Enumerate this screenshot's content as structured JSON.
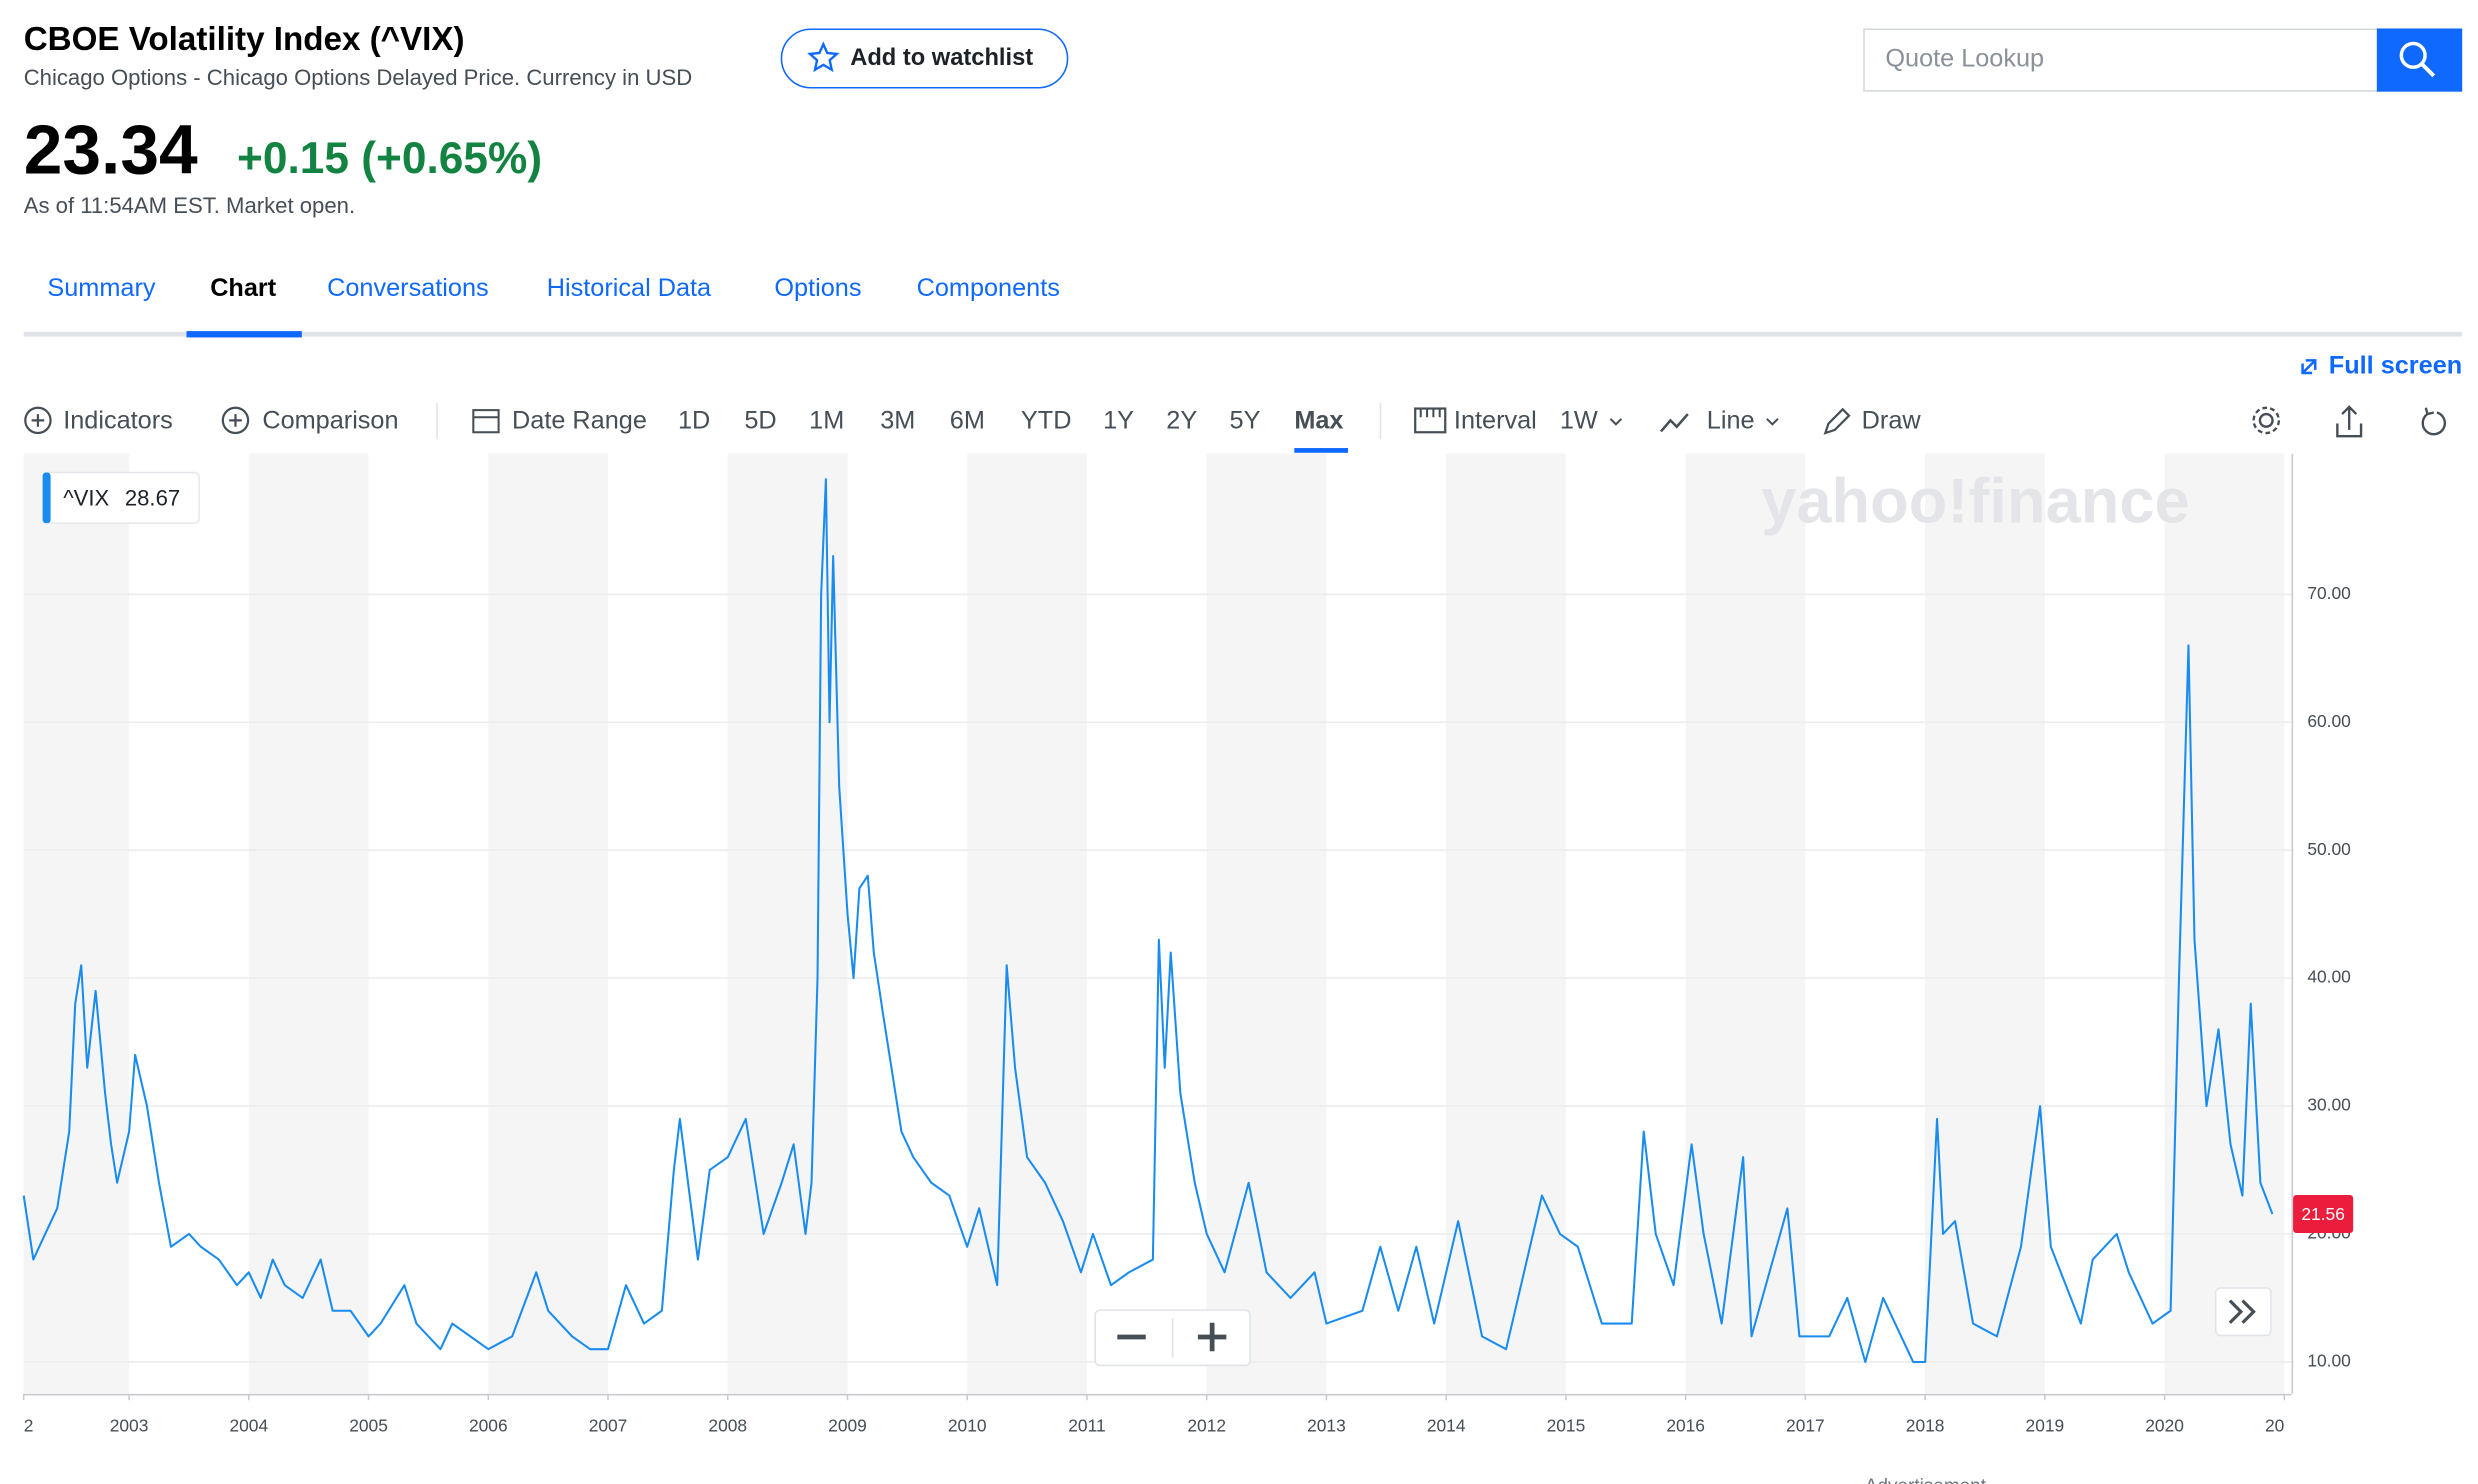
{
  "header": {
    "title": "CBOE Volatility Index (^VIX)",
    "subtitle": "Chicago Options - Chicago Options Delayed Price. Currency in USD",
    "watchlist": "Add to watchlist",
    "search_placeholder": "Quote Lookup",
    "price": "23.34",
    "change": "+0.15 (+0.65%)",
    "as_of": "As of 11:54AM EST. Market open."
  },
  "tabs": [
    "Summary",
    "Chart",
    "Conversations",
    "Historical Data",
    "Options",
    "Components"
  ],
  "toolbar": {
    "full_screen": "Full screen",
    "indicators": "Indicators",
    "comparison": "Comparison",
    "date_range": "Date Range",
    "ranges": [
      "1D",
      "5D",
      "1M",
      "3M",
      "6M",
      "YTD",
      "1Y",
      "2Y",
      "5Y",
      "Max"
    ],
    "interval": "Interval",
    "interval_value": "1W",
    "line": "Line",
    "draw": "Draw"
  },
  "chart_data": {
    "type": "line",
    "watermark": "yahoo!finance",
    "tooltip_value": 28.67,
    "last_value": 21.56,
    "series": [
      {
        "name": "^VIX",
        "color": "#1a8cf0",
        "values": [
          23,
          18,
          20,
          22,
          28,
          38,
          41,
          33,
          39,
          31,
          27,
          24,
          28,
          34,
          30,
          24,
          19,
          20,
          19,
          18,
          16,
          17,
          15,
          18,
          16,
          15,
          18,
          14,
          14,
          12,
          13,
          16,
          13,
          11,
          13,
          12,
          11,
          12,
          17,
          14,
          12,
          11,
          11,
          16,
          13,
          14,
          25,
          29,
          18,
          25,
          26,
          29,
          20,
          24,
          27,
          20,
          24,
          40,
          70,
          79,
          60,
          73,
          55,
          45,
          40,
          47,
          48,
          42,
          37,
          28,
          26,
          24,
          23,
          19,
          22,
          16,
          41,
          33,
          26,
          24,
          21,
          17,
          20,
          16,
          17,
          18,
          43,
          33,
          42,
          31,
          24,
          20,
          17,
          24,
          17,
          15,
          17,
          13,
          14,
          19,
          14,
          19,
          13,
          21,
          12,
          11,
          23,
          20,
          19,
          13,
          13,
          28,
          20,
          16,
          27,
          20,
          13,
          26,
          12,
          22,
          12,
          12,
          15,
          10,
          15,
          10,
          10,
          29,
          20,
          21,
          13,
          12,
          19,
          30,
          19,
          13,
          18,
          20,
          17,
          13,
          14,
          40,
          66,
          43,
          30,
          36,
          27,
          23,
          38,
          24,
          21.56
        ]
      }
    ],
    "x": [
      2002.12,
      2002.2,
      2002.3,
      2002.4,
      2002.5,
      2002.55,
      2002.6,
      2002.65,
      2002.72,
      2002.8,
      2002.85,
      2002.9,
      2003.0,
      2003.05,
      2003.15,
      2003.25,
      2003.35,
      2003.5,
      2003.6,
      2003.75,
      2003.9,
      2004.0,
      2004.1,
      2004.2,
      2004.3,
      2004.45,
      2004.6,
      2004.7,
      2004.85,
      2005.0,
      2005.1,
      2005.3,
      2005.4,
      2005.6,
      2005.7,
      2005.85,
      2006.0,
      2006.2,
      2006.4,
      2006.5,
      2006.7,
      2006.85,
      2007.0,
      2007.15,
      2007.3,
      2007.45,
      2007.55,
      2007.6,
      2007.75,
      2007.85,
      2008.0,
      2008.15,
      2008.3,
      2008.45,
      2008.55,
      2008.65,
      2008.7,
      2008.75,
      2008.78,
      2008.82,
      2008.85,
      2008.88,
      2008.93,
      2009.0,
      2009.05,
      2009.1,
      2009.17,
      2009.22,
      2009.3,
      2009.45,
      2009.55,
      2009.7,
      2009.85,
      2010.0,
      2010.1,
      2010.25,
      2010.33,
      2010.4,
      2010.5,
      2010.65,
      2010.8,
      2010.95,
      2011.05,
      2011.2,
      2011.35,
      2011.55,
      2011.6,
      2011.65,
      2011.7,
      2011.78,
      2011.9,
      2012.0,
      2012.15,
      2012.35,
      2012.5,
      2012.7,
      2012.9,
      2013.0,
      2013.3,
      2013.45,
      2013.6,
      2013.75,
      2013.9,
      2014.1,
      2014.3,
      2014.5,
      2014.8,
      2014.95,
      2015.1,
      2015.3,
      2015.55,
      2015.65,
      2015.75,
      2015.9,
      2016.05,
      2016.15,
      2016.3,
      2016.48,
      2016.55,
      2016.85,
      2016.95,
      2017.2,
      2017.35,
      2017.5,
      2017.65,
      2017.9,
      2018.0,
      2018.1,
      2018.15,
      2018.25,
      2018.4,
      2018.6,
      2018.8,
      2018.96,
      2019.05,
      2019.3,
      2019.4,
      2019.6,
      2019.7,
      2019.9,
      2020.05,
      2020.12,
      2020.2,
      2020.25,
      2020.35,
      2020.45,
      2020.55,
      2020.65,
      2020.72,
      2020.8,
      2020.9
    ],
    "xlim": [
      2002.12,
      2021.06
    ],
    "xticks": [
      {
        "value": 2002,
        "label": "2"
      },
      2003,
      2004,
      2005,
      2006,
      2007,
      2008,
      2009,
      2010,
      2011,
      2012,
      2013,
      2014,
      2015,
      2016,
      2017,
      2018,
      2019,
      2020,
      {
        "value": 2021,
        "label": "20"
      }
    ],
    "ylim": [
      7.5,
      81
    ],
    "yticks": [
      {
        "value": 10,
        "label": "10.00"
      },
      {
        "value": 20,
        "label": "20.00"
      },
      {
        "value": 30,
        "label": "30.00"
      },
      {
        "value": 40,
        "label": "40.00"
      },
      {
        "value": 50,
        "label": "50.00"
      },
      {
        "value": 60,
        "label": "60.00"
      },
      {
        "value": 70,
        "label": "70.00"
      }
    ],
    "grid": true
  },
  "footer": {
    "advertisement": "Advertisement"
  }
}
